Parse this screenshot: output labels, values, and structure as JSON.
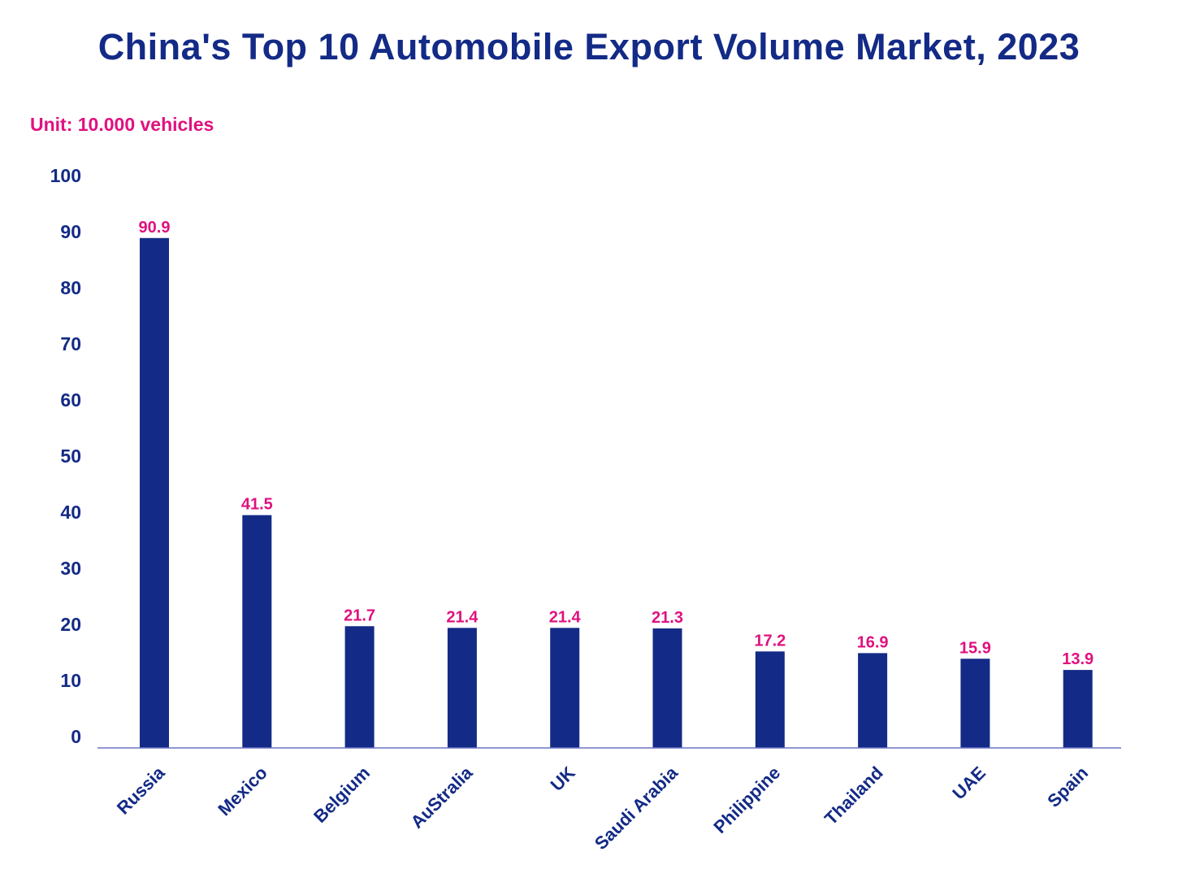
{
  "chart_data": {
    "type": "bar",
    "title": "China's Top 10 Automobile Export Volume Market, 2023",
    "unit_label": "Unit: 10.000 vehicles",
    "xlabel": "",
    "ylabel": "",
    "categories": [
      "Russia",
      "Mexico",
      "Belgium",
      "AuStralia",
      "UK",
      "Saudi Arabia",
      "Philippine",
      "Thailand",
      "UAE",
      "Spain"
    ],
    "values": [
      90.9,
      41.5,
      21.7,
      21.4,
      21.4,
      21.3,
      17.2,
      16.9,
      15.9,
      13.9
    ],
    "data_labels": [
      "90.9",
      "41.5",
      "21.7",
      "21.4",
      "21.4",
      "21.3",
      "17.2",
      "16.9",
      "15.9",
      "13.9"
    ],
    "ylim": [
      0,
      100
    ],
    "yticks": [
      0,
      10,
      20,
      30,
      40,
      50,
      60,
      70,
      80,
      90,
      100
    ],
    "ytick_labels": [
      "0",
      "10",
      "20",
      "30",
      "40",
      "50",
      "60",
      "70",
      "80",
      "90",
      "100"
    ],
    "grid": false,
    "legend": "none"
  },
  "colors": {
    "bar": "#132a86",
    "title": "#132a86",
    "axis_text": "#132a86",
    "data_label": "#e0117f",
    "unit_label": "#e0117f",
    "axis_line": "#6b74c4"
  }
}
